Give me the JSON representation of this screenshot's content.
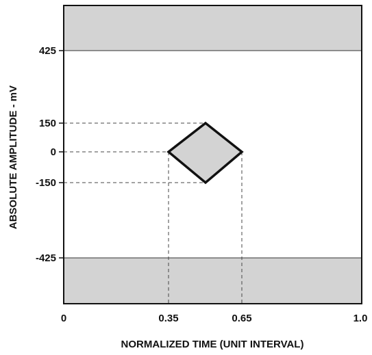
{
  "diagram": {
    "xlabel": "NORMALIZED TIME (UNIT INTERVAL)",
    "ylabel": "ABSOLUTE AMPLITUDE - mV",
    "x_ticks": [
      "0",
      "0.35",
      "0.65",
      "1.0"
    ],
    "y_ticks": [
      "425",
      "150",
      "0",
      "-150",
      "-425"
    ],
    "x_tick_values": [
      0,
      0.35,
      0.65,
      1.0
    ],
    "y_tick_values": [
      425,
      150,
      0,
      -150,
      -425
    ],
    "x_range": [
      0,
      1.0
    ],
    "y_range": [
      -425,
      425
    ],
    "eye_mask": [
      {
        "x": 0.35,
        "y": 0
      },
      {
        "x": 0.5,
        "y": 150
      },
      {
        "x": 0.65,
        "y": 0
      },
      {
        "x": 0.5,
        "y": -150
      }
    ],
    "exclusion_zones": [
      "above 425",
      "below -425"
    ],
    "colors": {
      "zone_fill": "#d3d3d3",
      "outline": "#111111",
      "guide": "#444444"
    }
  }
}
